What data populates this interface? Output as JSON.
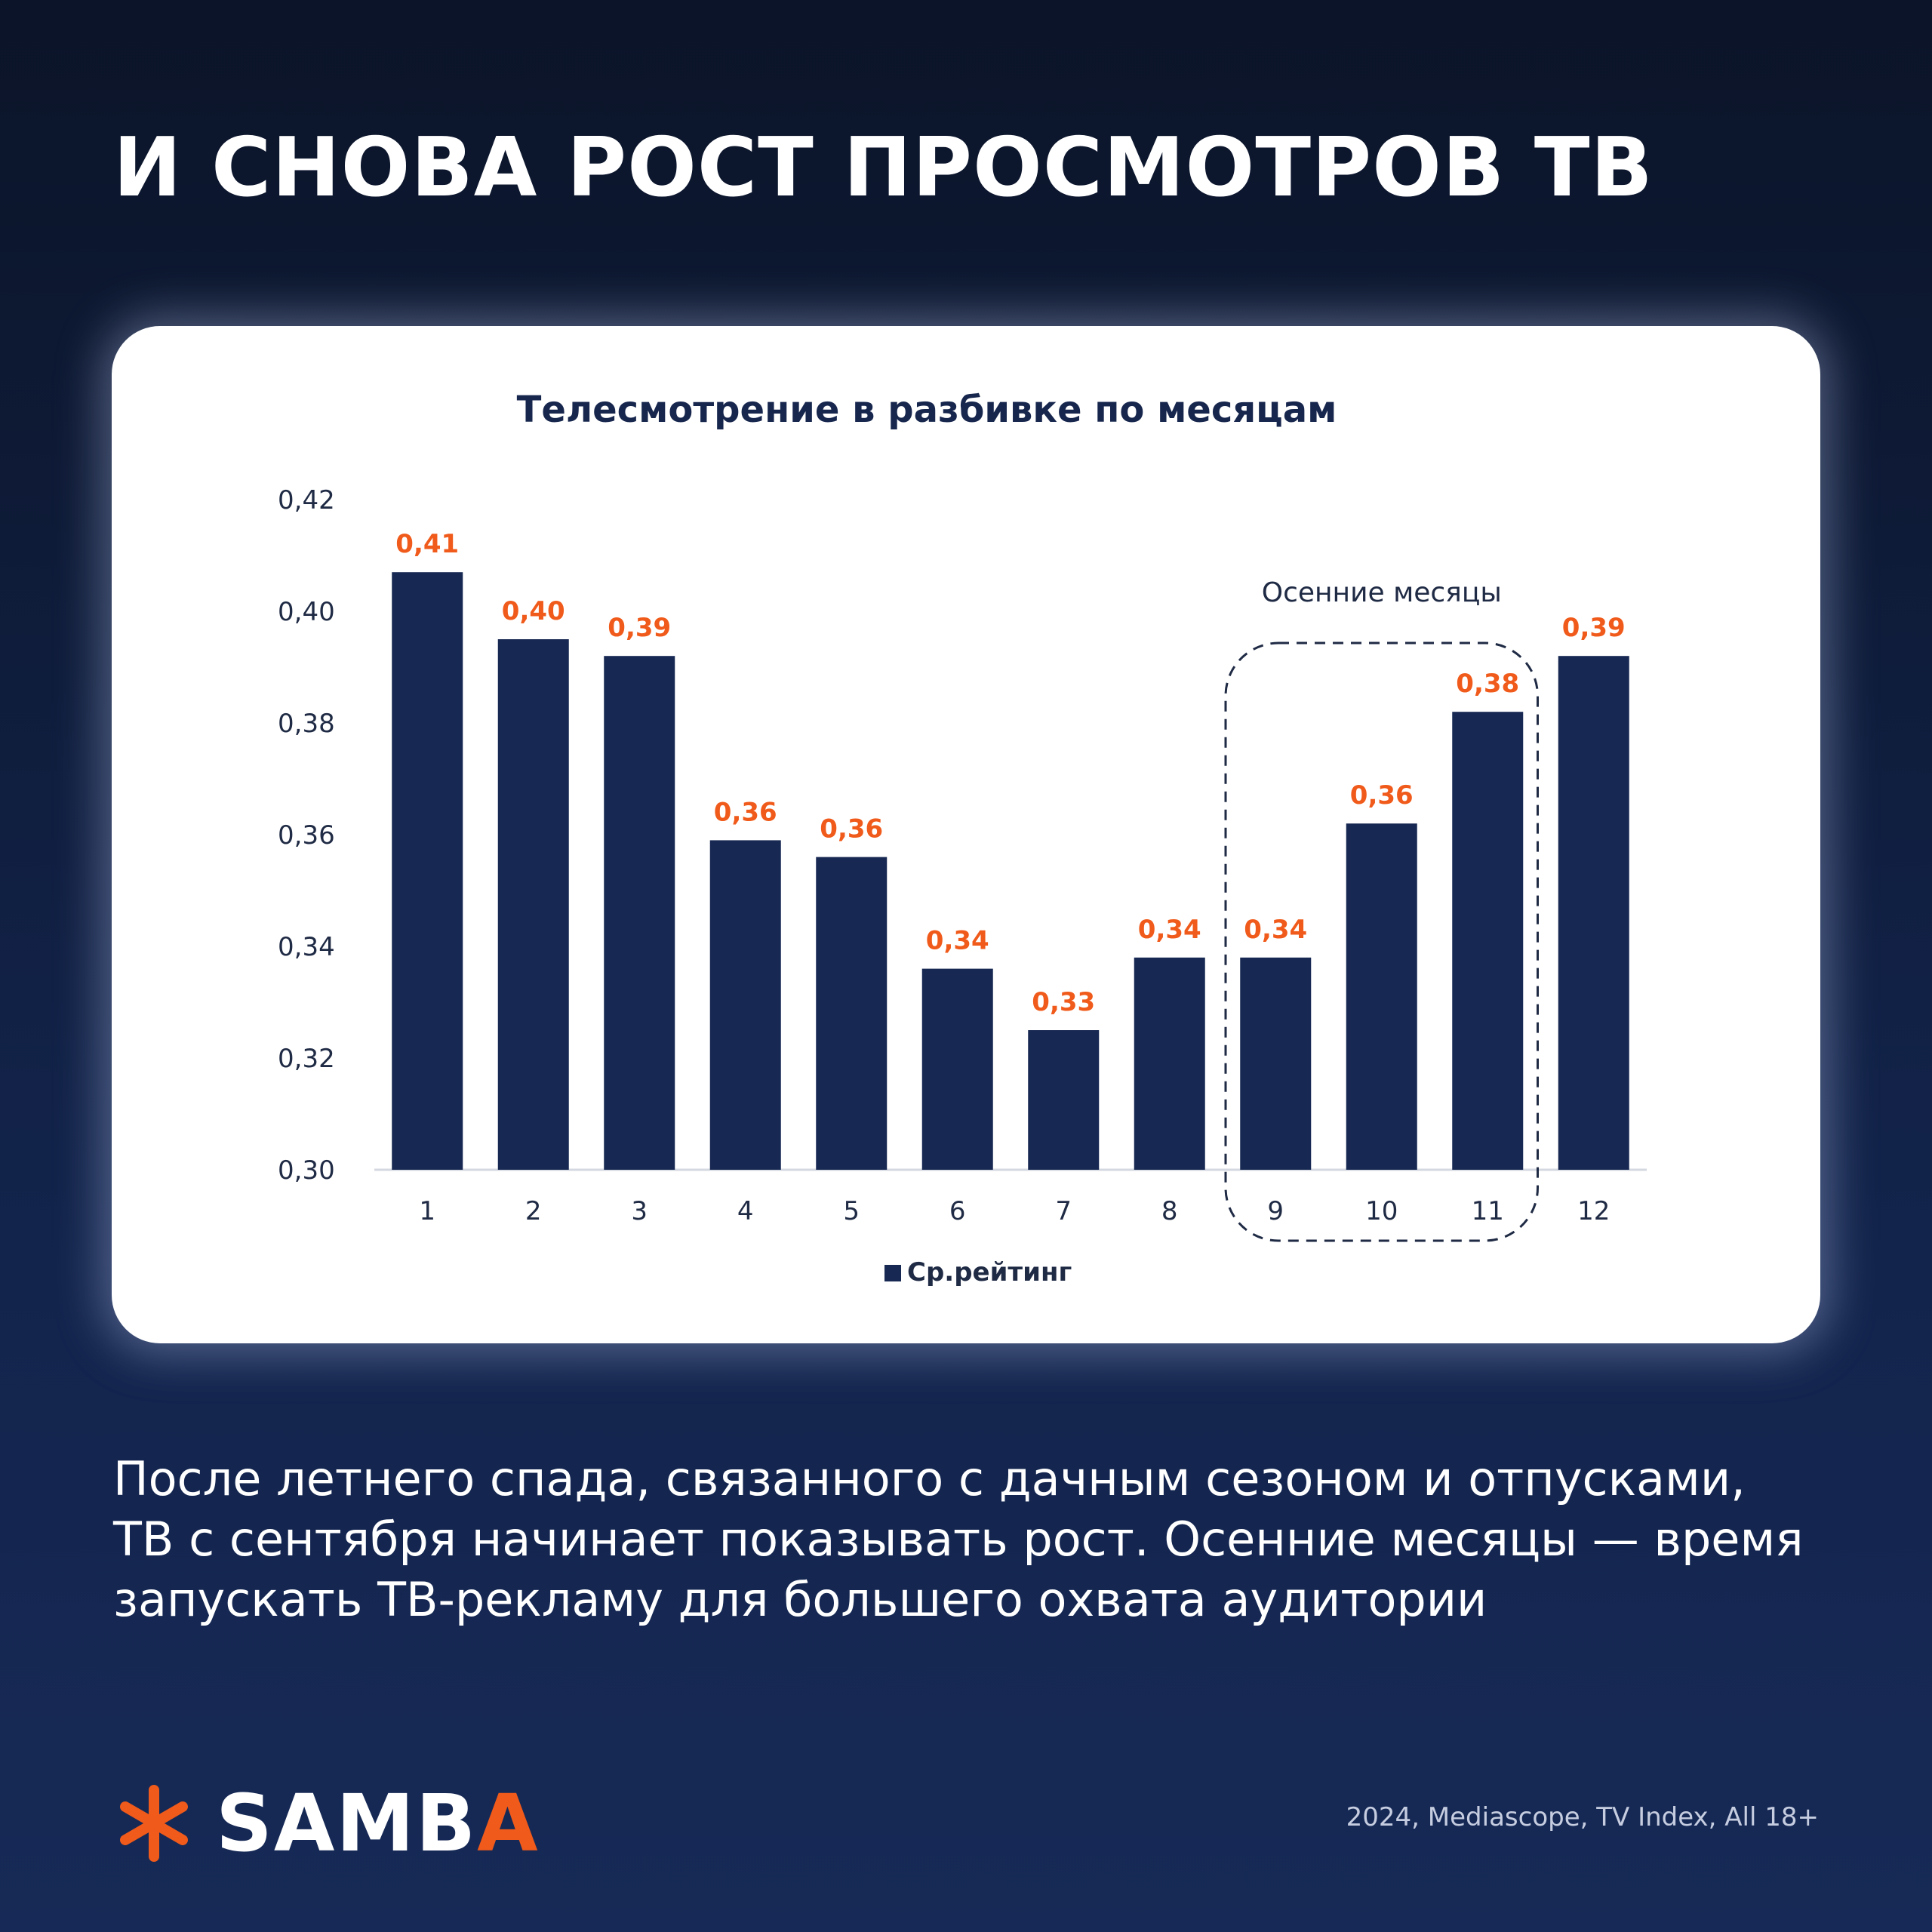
{
  "headline": "И СНОВА РОСТ ПРОСМОТРОВ ТВ",
  "body_lines": [
    "После летнего спада, связанного с дачным сезоном и отпусками,",
    "ТВ с сентября начинает показывать рост. Осенние месяцы — время",
    "запускать ТВ-рекламу для большего охвата аудитории"
  ],
  "logo": {
    "text_main": "SAMB",
    "text_accent": "A",
    "icon": "asterisk-logo-icon"
  },
  "source": "2024, Mediascope, TV Index, All 18+",
  "colors": {
    "bar": "#172852",
    "label": "#f05a1a",
    "accent": "#f05a1a"
  },
  "chart_data": {
    "type": "bar",
    "title": "Телесмотрение в разбивке по месяцам",
    "categories": [
      "1",
      "2",
      "3",
      "4",
      "5",
      "6",
      "7",
      "8",
      "9",
      "10",
      "11",
      "12"
    ],
    "series": [
      {
        "name": "Ср.рейтинг",
        "values": [
          0.407,
          0.395,
          0.392,
          0.359,
          0.356,
          0.336,
          0.325,
          0.338,
          0.338,
          0.362,
          0.382,
          0.392
        ],
        "labels": [
          "0,41",
          "0,40",
          "0,39",
          "0,36",
          "0,36",
          "0,34",
          "0,33",
          "0,34",
          "0,34",
          "0,36",
          "0,38",
          "0,39"
        ]
      }
    ],
    "ylim": [
      0.3,
      0.42
    ],
    "yticks": [
      "0,30",
      "0,32",
      "0,34",
      "0,36",
      "0,38",
      "0,40",
      "0,42"
    ],
    "grid": false,
    "legend": "bottom-center",
    "annotation": {
      "text": "Осенние месяцы",
      "categories": [
        "9",
        "10",
        "11"
      ]
    }
  }
}
